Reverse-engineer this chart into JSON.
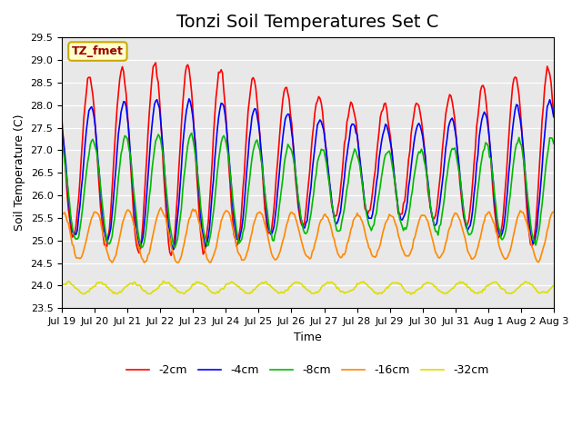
{
  "title": "Tonzi Soil Temperatures Set C",
  "xlabel": "Time",
  "ylabel": "Soil Temperature (C)",
  "annotation": "TZ_fmet",
  "ylim": [
    23.5,
    29.5
  ],
  "series_labels": [
    "-2cm",
    "-4cm",
    "-8cm",
    "-16cm",
    "-32cm"
  ],
  "series_colors": [
    "#ff0000",
    "#0000ff",
    "#00bb00",
    "#ff8800",
    "#dddd00"
  ],
  "x_tick_labels": [
    "Jul 19",
    "Jul 20",
    "Jul 21",
    "Jul 22",
    "Jul 23",
    "Jul 24",
    "Jul 25",
    "Jul 26",
    "Jul 27",
    "Jul 28",
    "Jul 29",
    "Jul 30",
    "Jul 31",
    "Aug 1",
    "Aug 2",
    "Aug 3"
  ],
  "plot_bg_color": "#e8e8e8",
  "title_fontsize": 14,
  "n_points": 384,
  "n_days": 15
}
